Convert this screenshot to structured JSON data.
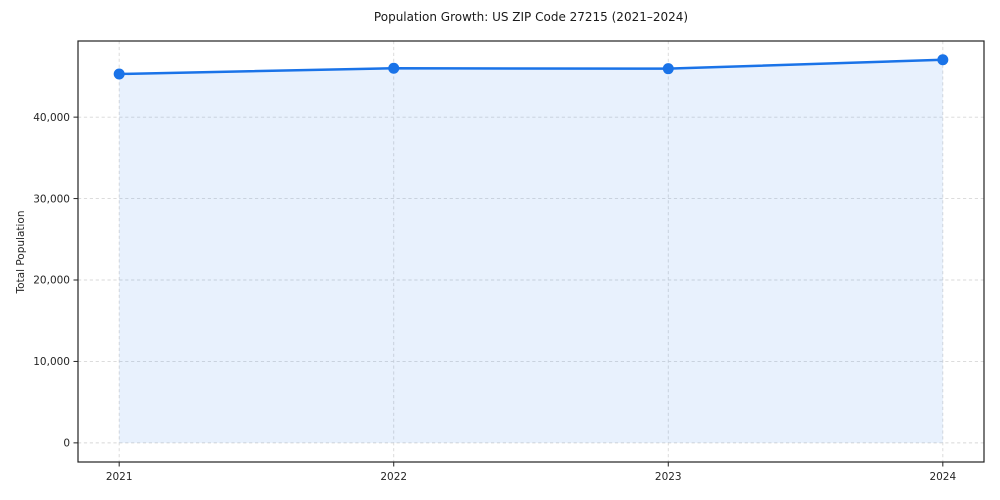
{
  "figure": {
    "background": "#ffffff"
  },
  "chart_data": {
    "type": "line",
    "title": "Population Growth: US ZIP Code 27215 (2021–2024)",
    "xlabel": "",
    "ylabel": "Total Population",
    "x": [
      2021,
      2022,
      2023,
      2024
    ],
    "x_tick_labels": [
      "2021",
      "2022",
      "2023",
      "2024"
    ],
    "series": [
      {
        "name": "Total Population",
        "values": [
          45300,
          46000,
          45950,
          47050
        ]
      }
    ],
    "y_ticks": [
      0,
      10000,
      20000,
      30000,
      40000
    ],
    "y_tick_labels": [
      "0",
      "10,000",
      "20,000",
      "30,000",
      "40,000"
    ],
    "xlim": [
      2020.85,
      2024.15
    ],
    "ylim": [
      -2350,
      49350
    ],
    "grid": true,
    "grid_style": "dashed",
    "legend": "none",
    "marker": "circle",
    "area_fill_to": 0,
    "fill_opacity": 0.1,
    "colors": {
      "line": "#1a73e8",
      "grid": "#d8d8d8",
      "axis": "#222222",
      "text": "#262626",
      "background": "#ffffff"
    }
  }
}
